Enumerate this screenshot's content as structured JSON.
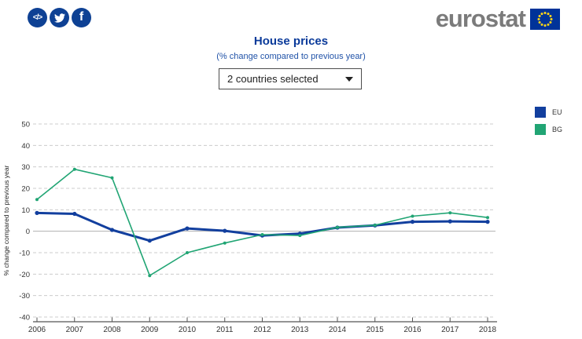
{
  "header": {
    "logo_text": "eurostat",
    "social_icons": [
      "code-icon",
      "twitter-icon",
      "facebook-icon"
    ]
  },
  "dropdown": {
    "value": "2 countries selected"
  },
  "colors": {
    "brand_blue": "#0e4194",
    "logo_gray": "#7b7b7b",
    "title_blue": "#0a3a9a",
    "subtitle_blue": "#2153a8",
    "flag_blue": "#003399",
    "star_yellow": "#ffd617",
    "grid_line": "#cccccc",
    "zero_line": "#b0b0b0",
    "axis_line": "#555555",
    "axis_text": "#333333"
  },
  "chart_data": {
    "type": "line",
    "title": "House prices",
    "subtitle": "(% change compared to previous year)",
    "ylabel": "% change compared to previous year",
    "xlabel": "",
    "x": [
      2006,
      2007,
      2008,
      2009,
      2010,
      2011,
      2012,
      2013,
      2014,
      2015,
      2016,
      2017,
      2018
    ],
    "series": [
      {
        "name": "EU",
        "color": "#123f9e",
        "values": [
          8.5,
          8.1,
          0.6,
          -4.4,
          1.3,
          0.2,
          -2.0,
          -1.1,
          1.7,
          2.7,
          4.4,
          4.6,
          4.4
        ]
      },
      {
        "name": "BG",
        "color": "#21a574",
        "values": [
          14.8,
          28.9,
          24.9,
          -20.7,
          -10.0,
          -5.5,
          -1.6,
          -2.0,
          1.8,
          2.8,
          7.0,
          8.6,
          6.4
        ]
      }
    ],
    "ylim": [
      -40,
      50
    ],
    "ytick_step": 10,
    "grid": "dashed-horizontal",
    "legend_position": "top-right",
    "markers": true
  }
}
